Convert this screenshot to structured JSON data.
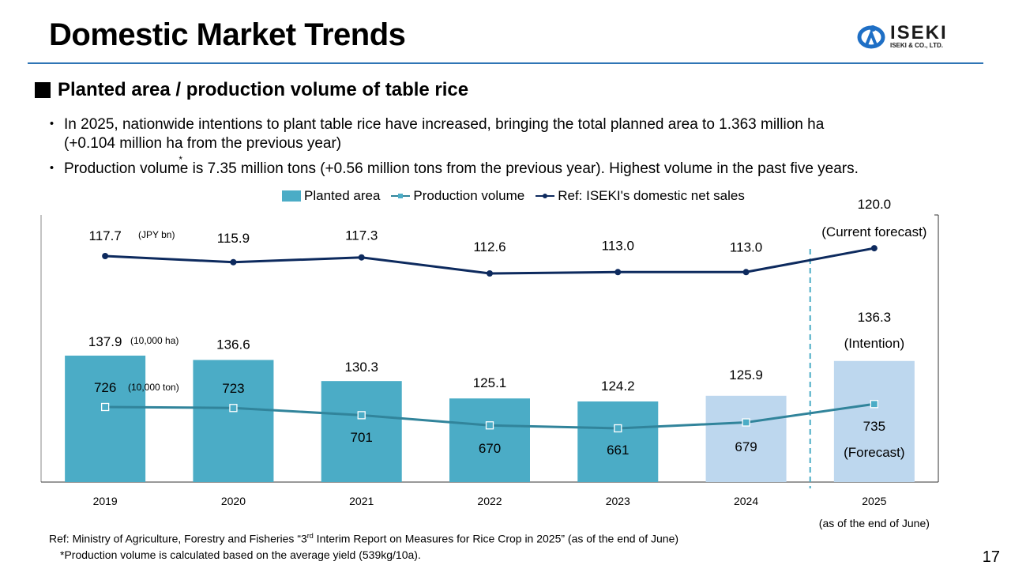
{
  "header": {
    "title": "Domestic Market Trends",
    "logo_text": "ISEKI",
    "logo_subtext": "ISEKI & CO., LTD."
  },
  "section": {
    "heading": "Planted area / production volume of table rice"
  },
  "bullets": [
    {
      "line1": "In 2025, nationwide intentions to plant table rice have increased, bringing the total planned area to 1.363 million ha",
      "line2": "(+0.104 million ha from the previous year)"
    },
    {
      "pre": "Production volume",
      "star": "*",
      "post": " is 7.35 million tons (+0.56 million tons from the previous year). Highest volume in the past five years."
    }
  ],
  "chart_data": {
    "type": "bar",
    "title": "",
    "categories": [
      "2019",
      "2020",
      "2021",
      "2022",
      "2023",
      "2024",
      "2025"
    ],
    "category_note": "(as of the end of June)",
    "legend": [
      "Planted area",
      "Production volume",
      "Ref: ISEKI's domestic net sales"
    ],
    "legend_placement": "top-center",
    "grid": false,
    "series": [
      {
        "name": "Planted area",
        "type": "bar",
        "unit": "(10,000 ha)",
        "values": [
          137.9,
          136.6,
          130.3,
          125.1,
          124.2,
          125.9,
          136.3
        ],
        "labels": [
          "137.9",
          "136.6",
          "130.3",
          "125.1",
          "124.2",
          "125.9",
          "136.3"
        ],
        "highlight_from_index": 5,
        "color": "#4bacc6",
        "highlight_color": "#bdd7ee",
        "last_note": "(Intention)"
      },
      {
        "name": "Production volume",
        "type": "line",
        "unit": "(10,000 ton)",
        "values": [
          726,
          723,
          701,
          670,
          661,
          679,
          735
        ],
        "labels": [
          "726",
          "723",
          "701",
          "670",
          "661",
          "679",
          "735"
        ],
        "color": "#31849b",
        "last_note": "(Forecast)"
      },
      {
        "name": "Ref: ISEKI's domestic net sales",
        "type": "line",
        "unit": "(JPY bn)",
        "values": [
          117.7,
          115.9,
          117.3,
          112.6,
          113.0,
          113.0,
          120.0
        ],
        "labels": [
          "117.7",
          "115.9",
          "117.3",
          "112.6",
          "113.0",
          "113.0",
          "120.0"
        ],
        "color": "#0d2a5e",
        "last_note": "(Current forecast)"
      }
    ],
    "forecast_divider_between": [
      "2024",
      "2025"
    ]
  },
  "footnote": {
    "line1_pre": "Ref: Ministry of Agriculture, Forestry and Fisheries “3",
    "line1_sup": "rd",
    "line1_post": " Interim Report on Measures for Rice Crop in 2025” (as of the end of June)",
    "line2": "*Production volume is calculated based on the average yield (539kg/10a)."
  },
  "page_number": "17"
}
